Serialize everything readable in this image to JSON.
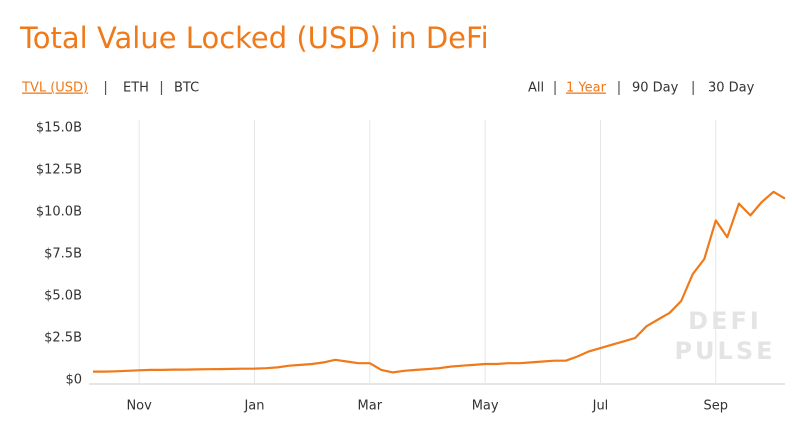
{
  "chart_data": {
    "type": "line",
    "title": "Total Value Locked (USD) in DeFi",
    "tabs_left": {
      "items": [
        "TVL (USD)",
        "ETH",
        "BTC"
      ],
      "active": 0
    },
    "tabs_right": {
      "items": [
        "All",
        "1 Year",
        "90 Day",
        "30 Day"
      ],
      "active": 1
    },
    "watermark": [
      "DEFI",
      "PULSE"
    ],
    "categories": [
      null,
      null,
      null,
      null,
      "Nov",
      null,
      null,
      null,
      null,
      null,
      null,
      null,
      null,
      null,
      "Jan",
      null,
      null,
      null,
      null,
      null,
      null,
      null,
      null,
      null,
      "Mar",
      null,
      null,
      null,
      null,
      null,
      null,
      null,
      null,
      null,
      "May",
      null,
      null,
      null,
      null,
      null,
      null,
      null,
      null,
      null,
      "Jul",
      null,
      null,
      null,
      null,
      null,
      null,
      null,
      null,
      null,
      "Sep",
      null,
      null,
      null,
      null,
      null,
      null
    ],
    "series": [
      {
        "name": "TVL (USD)",
        "color": "#f07a1a",
        "values": [
          0.5,
          0.5,
          0.52,
          0.55,
          0.58,
          0.6,
          0.6,
          0.62,
          0.62,
          0.63,
          0.64,
          0.65,
          0.66,
          0.67,
          0.68,
          0.7,
          0.75,
          0.85,
          0.9,
          0.95,
          1.05,
          1.2,
          1.1,
          1.0,
          1.0,
          0.6,
          0.45,
          0.55,
          0.6,
          0.65,
          0.7,
          0.8,
          0.85,
          0.9,
          0.95,
          0.95,
          1.0,
          1.0,
          1.05,
          1.1,
          1.15,
          1.15,
          1.4,
          1.7,
          1.9,
          2.1,
          2.3,
          2.5,
          3.2,
          3.6,
          4.0,
          4.7,
          6.3,
          7.2,
          9.5,
          8.5,
          10.5,
          9.8,
          10.6,
          11.2,
          10.8
        ]
      }
    ],
    "ylim": [
      0,
      15
    ],
    "yticks": [
      {
        "value": 0,
        "label": "$0"
      },
      {
        "value": 2.5,
        "label": "$2.5B"
      },
      {
        "value": 5,
        "label": "$5.0B"
      },
      {
        "value": 7.5,
        "label": "$7.5B"
      },
      {
        "value": 10,
        "label": "$10.0B"
      },
      {
        "value": 12.5,
        "label": "$12.5B"
      },
      {
        "value": 15,
        "label": "$15.0B"
      }
    ],
    "grid": true
  }
}
